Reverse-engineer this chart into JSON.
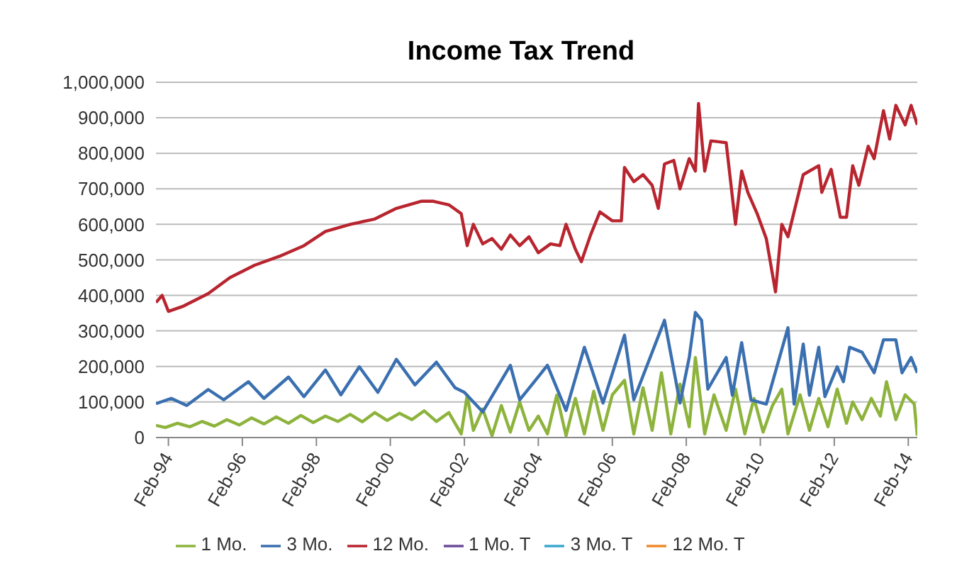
{
  "chart_data": {
    "type": "line",
    "title": "Income Tax Trend",
    "xlim": [
      "1993-10",
      "2014-05"
    ],
    "xticks": [
      {
        "value": "1994-02",
        "label": "Feb-94"
      },
      {
        "value": "1996-02",
        "label": "Feb-96"
      },
      {
        "value": "1998-02",
        "label": "Feb-98"
      },
      {
        "value": "2000-02",
        "label": "Feb-00"
      },
      {
        "value": "2002-02",
        "label": "Feb-02"
      },
      {
        "value": "2004-02",
        "label": "Feb-04"
      },
      {
        "value": "2006-02",
        "label": "Feb-06"
      },
      {
        "value": "2008-02",
        "label": "Feb-08"
      },
      {
        "value": "2010-02",
        "label": "Feb-10"
      },
      {
        "value": "2012-02",
        "label": "Feb-12"
      },
      {
        "value": "2014-02",
        "label": "Feb-14"
      }
    ],
    "ylim": [
      0,
      1000000
    ],
    "yticks": [
      0,
      {
        "value": 100000,
        "label": "100,000"
      },
      {
        "value": 200000,
        "label": "200,000"
      },
      {
        "value": 300000,
        "label": "300,000"
      },
      {
        "value": 400000,
        "label": "400,000"
      },
      {
        "value": 500000,
        "label": "500,000"
      },
      {
        "value": 600000,
        "label": "600,000"
      },
      {
        "value": 700000,
        "label": "700,000"
      },
      {
        "value": 800000,
        "label": "800,000"
      },
      {
        "value": 900000,
        "label": "900,000"
      },
      {
        "value": 1000000,
        "label": "1,000,000"
      }
    ],
    "grid": "y",
    "legend": "bottom",
    "marker": "none",
    "line_style": "solid",
    "series": [
      {
        "name": "1 Mo.",
        "color": "#8db33c",
        "x": [
          "1993-10",
          "1994-01",
          "1994-05",
          "1994-09",
          "1995-01",
          "1995-05",
          "1995-09",
          "1996-01",
          "1996-05",
          "1996-09",
          "1997-01",
          "1997-05",
          "1997-09",
          "1998-01",
          "1998-05",
          "1998-09",
          "1999-01",
          "1999-05",
          "1999-09",
          "2000-01",
          "2000-05",
          "2000-09",
          "2001-01",
          "2001-05",
          "2001-09",
          "2002-01",
          "2002-03",
          "2002-05",
          "2002-08",
          "2002-11",
          "2003-02",
          "2003-05",
          "2003-08",
          "2003-11",
          "2004-02",
          "2004-05",
          "2004-08",
          "2004-11",
          "2005-02",
          "2005-05",
          "2005-08",
          "2005-11",
          "2006-02",
          "2006-06",
          "2006-09",
          "2006-12",
          "2007-03",
          "2007-06",
          "2007-09",
          "2007-12",
          "2008-03",
          "2008-05",
          "2008-08",
          "2008-11",
          "2009-03",
          "2009-06",
          "2009-09",
          "2009-12",
          "2010-03",
          "2010-06",
          "2010-09",
          "2010-11",
          "2011-03",
          "2011-06",
          "2011-09",
          "2011-12",
          "2012-03",
          "2012-06",
          "2012-08",
          "2012-11",
          "2013-02",
          "2013-05",
          "2013-07",
          "2013-10",
          "2014-01",
          "2014-04",
          "2014-05"
        ],
        "values": [
          34000,
          28000,
          40000,
          30000,
          45000,
          32000,
          50000,
          35000,
          55000,
          38000,
          58000,
          40000,
          62000,
          42000,
          60000,
          45000,
          65000,
          44000,
          70000,
          48000,
          68000,
          50000,
          75000,
          45000,
          70000,
          10000,
          119000,
          20000,
          80000,
          5000,
          90000,
          15000,
          100000,
          20000,
          60000,
          10000,
          119000,
          5000,
          110000,
          10000,
          130000,
          20000,
          120000,
          161000,
          10000,
          140000,
          20000,
          182000,
          10000,
          150000,
          30000,
          225000,
          10000,
          120000,
          20000,
          136000,
          10000,
          110000,
          15000,
          90000,
          136000,
          10000,
          120000,
          20000,
          110000,
          30000,
          136000,
          40000,
          100000,
          50000,
          110000,
          60000,
          157000,
          50000,
          120000,
          94000,
          5000
        ]
      },
      {
        "name": "3 Mo.",
        "color": "#3a6fb0",
        "x": [
          "1993-10",
          "1994-03",
          "1994-08",
          "1995-03",
          "1995-08",
          "1996-04",
          "1996-09",
          "1997-05",
          "1997-10",
          "1998-05",
          "1998-10",
          "1999-04",
          "1999-10",
          "2000-04",
          "2000-10",
          "2001-05",
          "2001-11",
          "2002-02",
          "2002-08",
          "2003-05",
          "2003-08",
          "2004-05",
          "2004-11",
          "2005-05",
          "2005-11",
          "2006-06",
          "2006-09",
          "2007-07",
          "2007-12",
          "2008-03",
          "2008-05",
          "2008-07",
          "2008-09",
          "2009-03",
          "2009-05",
          "2009-08",
          "2009-11",
          "2010-04",
          "2010-11",
          "2011-01",
          "2011-04",
          "2011-06",
          "2011-09",
          "2011-11",
          "2012-03",
          "2012-05",
          "2012-07",
          "2012-11",
          "2013-03",
          "2013-06",
          "2013-10",
          "2013-12",
          "2014-03",
          "2014-05"
        ],
        "values": [
          95000,
          110000,
          90000,
          135000,
          106000,
          157000,
          110000,
          170000,
          115000,
          190000,
          120000,
          199000,
          127000,
          220000,
          148000,
          212000,
          140000,
          127000,
          72000,
          203000,
          106000,
          203000,
          76000,
          254000,
          97000,
          288000,
          106000,
          330000,
          97000,
          225000,
          352000,
          330000,
          136000,
          225000,
          119000,
          267000,
          106000,
          94000,
          309000,
          94000,
          263000,
          119000,
          254000,
          115000,
          199000,
          157000,
          254000,
          240000,
          182000,
          275000,
          275000,
          182000,
          225000,
          182000
        ]
      },
      {
        "name": "12 Mo.",
        "color": "#b8252f",
        "x": [
          "1993-10",
          "1993-12",
          "1994-02",
          "1994-07",
          "1995-03",
          "1995-10",
          "1996-06",
          "1997-02",
          "1997-10",
          "1998-05",
          "1999-01",
          "1999-09",
          "2000-04",
          "2000-12",
          "2001-04",
          "2001-09",
          "2002-01",
          "2002-03",
          "2002-05",
          "2002-08",
          "2002-11",
          "2003-02",
          "2003-05",
          "2003-08",
          "2003-11",
          "2004-02",
          "2004-06",
          "2004-09",
          "2004-11",
          "2005-02",
          "2005-04",
          "2005-07",
          "2005-10",
          "2006-02",
          "2006-05",
          "2006-06",
          "2006-09",
          "2006-12",
          "2007-03",
          "2007-05",
          "2007-07",
          "2007-10",
          "2007-12",
          "2008-03",
          "2008-05",
          "2008-06",
          "2008-08",
          "2008-10",
          "2009-03",
          "2009-06",
          "2009-08",
          "2009-10",
          "2010-01",
          "2010-04",
          "2010-07",
          "2010-09",
          "2010-11",
          "2011-04",
          "2011-09",
          "2011-10",
          "2012-01",
          "2012-04",
          "2012-06",
          "2012-08",
          "2012-10",
          "2013-01",
          "2013-03",
          "2013-06",
          "2013-08",
          "2013-10",
          "2014-01",
          "2014-03",
          "2014-05"
        ],
        "values": [
          380000,
          400000,
          355000,
          370000,
          405000,
          450000,
          485000,
          510000,
          540000,
          580000,
          600000,
          615000,
          645000,
          665000,
          665000,
          655000,
          630000,
          540000,
          600000,
          545000,
          560000,
          530000,
          570000,
          540000,
          565000,
          520000,
          545000,
          540000,
          600000,
          530000,
          495000,
          570000,
          635000,
          610000,
          610000,
          760000,
          720000,
          740000,
          710000,
          645000,
          770000,
          780000,
          700000,
          785000,
          750000,
          940000,
          750000,
          835000,
          830000,
          600000,
          750000,
          690000,
          630000,
          560000,
          410000,
          600000,
          565000,
          740000,
          765000,
          690000,
          755000,
          620000,
          620000,
          765000,
          710000,
          820000,
          785000,
          920000,
          840000,
          935000,
          880000,
          935000,
          880000
        ]
      },
      {
        "name": "1 Mo. T",
        "color": "#6a4b9a"
      },
      {
        "name": "3 Mo. T",
        "color": "#3aa9d0"
      },
      {
        "name": "12 Mo. T",
        "color": "#f08a2a"
      }
    ]
  }
}
